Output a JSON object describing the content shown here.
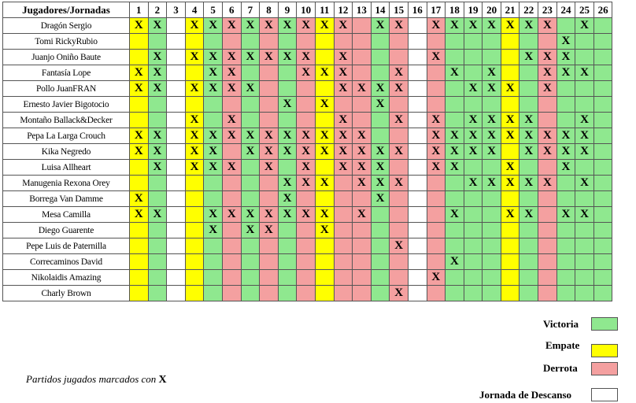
{
  "header": {
    "corner": "Jugadores/Jornadas",
    "rounds": [
      "1",
      "2",
      "3",
      "4",
      "5",
      "6",
      "7",
      "8",
      "9",
      "10",
      "11",
      "12",
      "13",
      "14",
      "15",
      "16",
      "17",
      "18",
      "19",
      "20",
      "21",
      "22",
      "23",
      "24",
      "25",
      "26"
    ]
  },
  "round_results": [
    "E",
    "V",
    "R",
    "E",
    "V",
    "D",
    "V",
    "D",
    "V",
    "D",
    "E",
    "D",
    "D",
    "V",
    "D",
    "R",
    "D",
    "V",
    "V",
    "V",
    "E",
    "V",
    "D",
    "V",
    "V",
    "V"
  ],
  "colors": {
    "V": "#8fe88f",
    "E": "#ffff00",
    "D": "#f4a0a0",
    "R": "#ffffff"
  },
  "played_mark": "X",
  "players": [
    {
      "name": "Dragón Sergio",
      "played": [
        1,
        2,
        4,
        5,
        6,
        7,
        8,
        9,
        10,
        11,
        12,
        14,
        15,
        17,
        18,
        19,
        20,
        21,
        22,
        23,
        25
      ]
    },
    {
      "name": "Tomi RickyRubio",
      "played": [
        24
      ]
    },
    {
      "name": "Juanjo Oniño Baute",
      "played": [
        2,
        4,
        5,
        6,
        7,
        8,
        9,
        10,
        12,
        17,
        22,
        23,
        24
      ]
    },
    {
      "name": "Fantasía Lope",
      "played": [
        1,
        2,
        5,
        6,
        10,
        11,
        12,
        15,
        18,
        20,
        23,
        24,
        25
      ]
    },
    {
      "name": "Pollo JuanFRAN",
      "played": [
        1,
        2,
        4,
        5,
        6,
        7,
        12,
        13,
        14,
        15,
        19,
        20,
        21,
        23
      ]
    },
    {
      "name": "Ernesto Javier Bigotocio",
      "played": [
        9,
        11,
        14
      ]
    },
    {
      "name": "Montaño Ballack&Decker",
      "played": [
        4,
        6,
        12,
        15,
        17,
        19,
        20,
        21,
        22,
        25
      ]
    },
    {
      "name": "Pepa La Larga Crouch",
      "played": [
        1,
        2,
        4,
        5,
        6,
        7,
        8,
        9,
        10,
        11,
        12,
        13,
        17,
        18,
        19,
        20,
        21,
        22,
        23,
        24,
        25
      ]
    },
    {
      "name": "Kika Negredo",
      "played": [
        1,
        2,
        4,
        5,
        7,
        8,
        9,
        10,
        11,
        12,
        13,
        14,
        15,
        17,
        18,
        19,
        20,
        22,
        23,
        24,
        25
      ]
    },
    {
      "name": "Luisa Allheart",
      "played": [
        2,
        4,
        5,
        6,
        8,
        10,
        12,
        13,
        14,
        17,
        18,
        21,
        24
      ]
    },
    {
      "name": "Manugenia Rexona Orey",
      "played": [
        9,
        10,
        11,
        13,
        14,
        15,
        19,
        20,
        21,
        22,
        23,
        25
      ]
    },
    {
      "name": "Borrega Van Damme",
      "played": [
        1,
        9,
        14
      ]
    },
    {
      "name": "Mesa Camilla",
      "played": [
        1,
        2,
        5,
        6,
        7,
        8,
        9,
        10,
        11,
        13,
        18,
        21,
        22,
        24,
        25
      ]
    },
    {
      "name": "Diego Guarente",
      "played": [
        5,
        7,
        8,
        11
      ]
    },
    {
      "name": "Pepe Luis de Paternilla",
      "played": [
        15
      ]
    },
    {
      "name": "Correcaminos David",
      "played": [
        18
      ]
    },
    {
      "name": "Nikolaidis Amazing",
      "played": [
        17
      ]
    },
    {
      "name": "Charly Brown",
      "played": [
        15
      ]
    }
  ],
  "legend": {
    "victoria": "Victoria",
    "empate": "Empate",
    "derrota": "Derrota",
    "descanso": "Jornada de Descanso"
  },
  "note": {
    "text": "Partidos jugados marcados con ",
    "mark": "X"
  }
}
